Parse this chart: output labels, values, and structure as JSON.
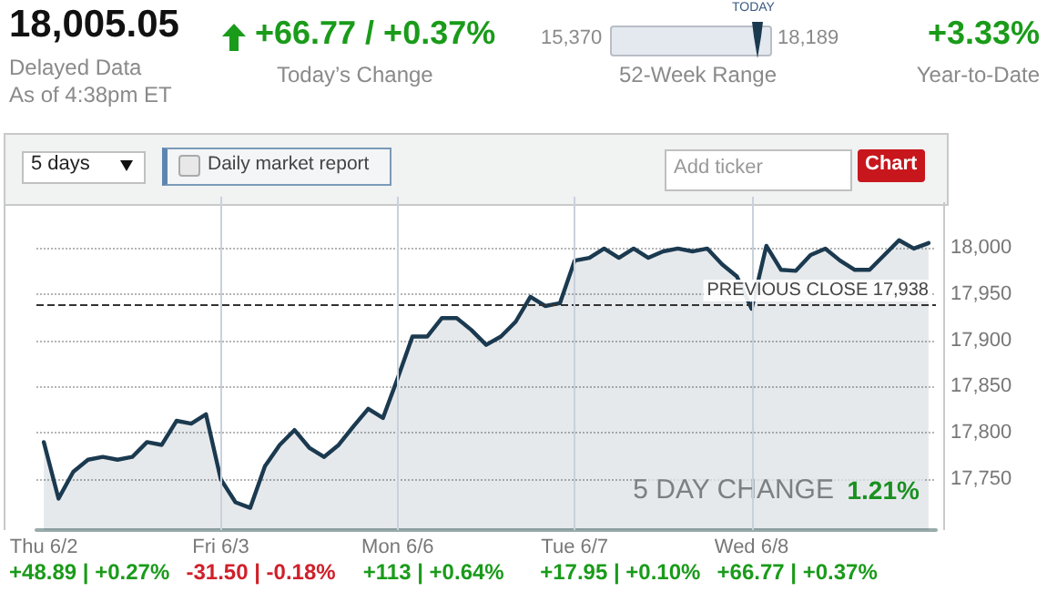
{
  "chart_data": {
    "type": "area",
    "annotations": [
      "18,005.05",
      "Delayed Data",
      "As of 4:38pm ET",
      "+66.77 / +0.37%",
      "Today’s Change",
      "15,370",
      "18,189",
      "TODAY",
      "52-Week Range",
      "+3.33%",
      "Year-to-Date",
      "5 days",
      "Daily market report",
      "Add ticker",
      "Chart",
      "5 DAY CHANGE",
      "1.21%",
      "+48.89 | +0.27%",
      "-31.50 | -0.18%",
      "+113 | +0.64%",
      "+17.95 | +0.10%",
      "+66.77 | +0.37%"
    ],
    "categories": [
      "Thu 6/2",
      null,
      null,
      null,
      null,
      null,
      null,
      null,
      null,
      null,
      null,
      null,
      "Fri 6/3",
      null,
      null,
      null,
      null,
      null,
      null,
      null,
      null,
      null,
      null,
      null,
      "Mon 6/6",
      null,
      null,
      null,
      null,
      null,
      null,
      null,
      null,
      null,
      null,
      null,
      "Tue 6/7",
      null,
      null,
      null,
      null,
      null,
      null,
      null,
      null,
      null,
      null,
      null,
      "Wed 6/8",
      null,
      null,
      null,
      null,
      null,
      null,
      null,
      null,
      null,
      null,
      null,
      null
    ],
    "series": [
      {
        "color": "#1b3a50",
        "values": [
          17790,
          17729,
          17758,
          17771,
          17774,
          17771,
          17774,
          17790,
          17787,
          17813,
          17810,
          17820,
          17750,
          17725,
          17719,
          17764,
          17787,
          17803,
          17784,
          17774,
          17787,
          17807,
          17826,
          17816,
          17859,
          17904,
          17904,
          17924,
          17924,
          17911,
          17895,
          17904,
          17920,
          17947,
          17937,
          17940,
          17986,
          17989,
          17999,
          17989,
          17999,
          17989,
          17996,
          17999,
          17996,
          17999,
          17982,
          17969,
          17934,
          18002,
          17976,
          17975,
          17992,
          17999,
          17986,
          17976,
          17976,
          17992,
          18008,
          17999,
          18005
        ]
      }
    ],
    "ylim": [
      17695,
      18055
    ],
    "yticks": [
      {
        "value": 17750,
        "label": "17,750"
      },
      {
        "value": 17800,
        "label": "17,800"
      },
      {
        "value": 17850,
        "label": "17,850"
      },
      {
        "value": 17900,
        "label": "17,900"
      },
      {
        "value": 17950,
        "label": "17,950"
      },
      {
        "value": 18000,
        "label": "18,000"
      }
    ],
    "grid": "y",
    "ref_lines": [
      {
        "axis": "y",
        "value": 17938,
        "label": "PREVIOUS CLOSE 17,938",
        "line_style": "dashed",
        "color": "#333333"
      },
      {
        "axis": "x",
        "value": "Fri 6/3",
        "color": "#c9d1db"
      },
      {
        "axis": "x",
        "value": "Mon 6/6",
        "color": "#c9d1db"
      },
      {
        "axis": "x",
        "value": "Tue 6/7",
        "color": "#c9d1db"
      },
      {
        "axis": "x",
        "value": "Wed 6/8",
        "color": "#c9d1db"
      }
    ]
  }
}
